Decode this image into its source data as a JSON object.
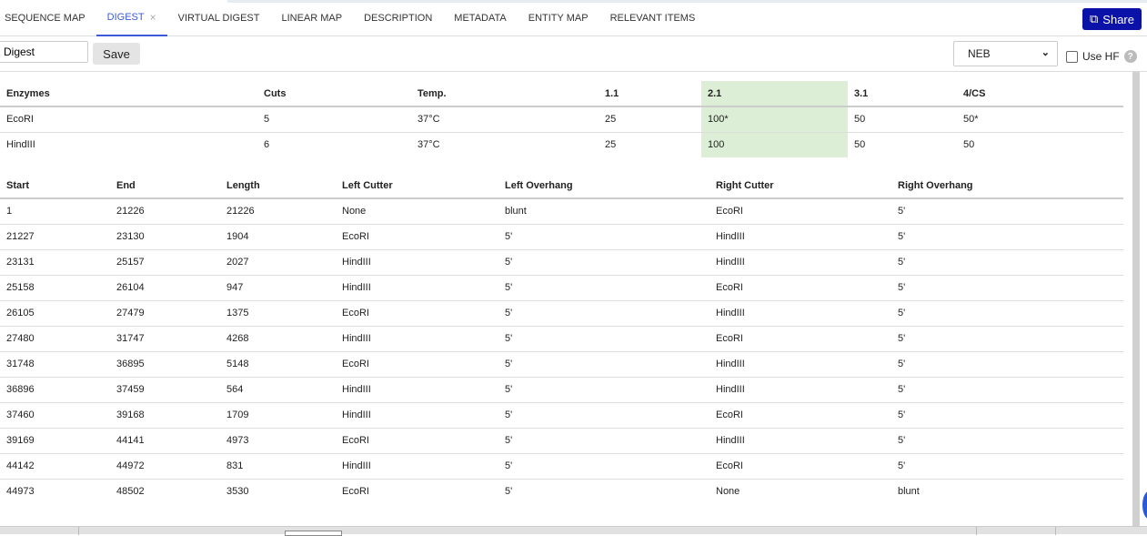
{
  "tabs": [
    {
      "label": "SEQUENCE MAP"
    },
    {
      "label": "DIGEST",
      "active": true,
      "close": "×"
    },
    {
      "label": "VIRTUAL DIGEST"
    },
    {
      "label": "LINEAR MAP"
    },
    {
      "label": "DESCRIPTION"
    },
    {
      "label": "METADATA"
    },
    {
      "label": "ENTITY MAP"
    },
    {
      "label": "RELEVANT ITEMS"
    }
  ],
  "share": {
    "label": "Share",
    "icon": "external-link-icon",
    "color": "#0a12a8"
  },
  "toolbar": {
    "name_value": "Digest",
    "save_label": "Save",
    "supplier": "NEB",
    "use_hf_label": "Use HF",
    "use_hf_checked": false,
    "help": "?"
  },
  "enzymes": {
    "headers": [
      "Enzymes",
      "Cuts",
      "Temp.",
      "1.1",
      "2.1",
      "3.1",
      "4/CS"
    ],
    "highlight_column": "2.1",
    "highlight_color": "#ddeed7",
    "rows": [
      [
        "EcoRI",
        "5",
        "37°C",
        "25",
        "100*",
        "50",
        "50*"
      ],
      [
        "HindIII",
        "6",
        "37°C",
        "25",
        "100",
        "50",
        "50"
      ]
    ]
  },
  "fragments": {
    "headers": [
      "Start",
      "End",
      "Length",
      "Left Cutter",
      "Left Overhang",
      "Right Cutter",
      "Right Overhang"
    ],
    "rows": [
      [
        "1",
        "21226",
        "21226",
        "None",
        "blunt",
        "EcoRI",
        "5'"
      ],
      [
        "21227",
        "23130",
        "1904",
        "EcoRI",
        "5'",
        "HindIII",
        "5'"
      ],
      [
        "23131",
        "25157",
        "2027",
        "HindIII",
        "5'",
        "HindIII",
        "5'"
      ],
      [
        "25158",
        "26104",
        "947",
        "HindIII",
        "5'",
        "EcoRI",
        "5'"
      ],
      [
        "26105",
        "27479",
        "1375",
        "EcoRI",
        "5'",
        "HindIII",
        "5'"
      ],
      [
        "27480",
        "31747",
        "4268",
        "HindIII",
        "5'",
        "EcoRI",
        "5'"
      ],
      [
        "31748",
        "36895",
        "5148",
        "EcoRI",
        "5'",
        "HindIII",
        "5'"
      ],
      [
        "36896",
        "37459",
        "564",
        "HindIII",
        "5'",
        "HindIII",
        "5'"
      ],
      [
        "37460",
        "39168",
        "1709",
        "HindIII",
        "5'",
        "EcoRI",
        "5'"
      ],
      [
        "39169",
        "44141",
        "4973",
        "EcoRI",
        "5'",
        "HindIII",
        "5'"
      ],
      [
        "44142",
        "44972",
        "831",
        "HindIII",
        "5'",
        "EcoRI",
        "5'"
      ],
      [
        "44973",
        "48502",
        "3530",
        "EcoRI",
        "5'",
        "None",
        "blunt"
      ]
    ]
  }
}
